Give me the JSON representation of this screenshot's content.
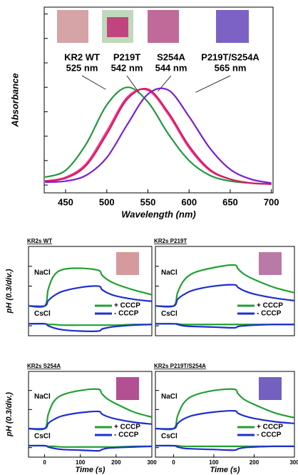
{
  "chart_data": [
    {
      "type": "spectrum",
      "xlabel": "Wavelength (nm)",
      "ylabel": "Absorbance",
      "x": [
        425,
        450,
        475,
        500,
        525,
        550,
        575,
        600,
        625,
        650,
        675,
        700
      ],
      "xlim": [
        424,
        702
      ],
      "xticks": [
        450,
        500,
        550,
        600,
        650,
        700
      ],
      "ylim": [
        -0.08,
        1.82
      ],
      "yticks": [
        0,
        0.25,
        0.5,
        0.75,
        1,
        1.25,
        1.5,
        1.75
      ],
      "series": [
        {
          "name": "KR2 WT",
          "peak_label": "525 nm",
          "color": "#1f9a3c",
          "values": [
            0.08,
            0.15,
            0.42,
            0.82,
            1.0,
            0.85,
            0.52,
            0.25,
            0.1,
            0.04,
            0.02,
            0.01
          ]
        },
        {
          "name": "P219T",
          "peak_label": "542 nm",
          "color": "#ee3a8c",
          "values": [
            0.04,
            0.08,
            0.22,
            0.55,
            0.9,
            0.97,
            0.72,
            0.38,
            0.15,
            0.06,
            0.02,
            0.01
          ]
        },
        {
          "name": "S254A",
          "peak_label": "544 nm",
          "color": "#d81b60",
          "values": [
            0.04,
            0.07,
            0.2,
            0.52,
            0.88,
            0.98,
            0.74,
            0.4,
            0.16,
            0.06,
            0.02,
            0.01
          ]
        },
        {
          "name": "P219T/S254A",
          "peak_label": "565 nm",
          "color": "#7a1fd2",
          "values": [
            0.03,
            0.04,
            0.1,
            0.28,
            0.62,
            0.93,
            0.97,
            0.7,
            0.38,
            0.16,
            0.06,
            0.02
          ]
        }
      ]
    },
    {
      "type": "ph",
      "title": "KR2s WT",
      "ylabel": "pH (0.3/div.)",
      "x": [
        -45,
        0,
        10,
        25,
        50,
        100,
        150,
        160,
        175,
        200,
        250,
        300
      ],
      "xlim": [
        -45,
        300
      ],
      "ylim": [
        -0.45,
        0.9
      ],
      "yticks": [
        -0.3,
        0,
        0.3,
        0.6
      ],
      "groups": [
        {
          "label": "NaCl",
          "series": [
            {
              "name": "+ CCCP",
              "color": "#22a033",
              "values": [
                0,
                0,
                0.25,
                0.45,
                0.55,
                0.57,
                0.54,
                0.47,
                0.4,
                0.33,
                0.24,
                0.17
              ]
            },
            {
              "name": "- CCCP",
              "color": "#1e2fd0",
              "values": [
                0,
                0,
                0.08,
                0.15,
                0.22,
                0.28,
                0.3,
                0.25,
                0.2,
                0.15,
                0.1,
                0.07
              ]
            }
          ]
        },
        {
          "label": "CsCl",
          "series": [
            {
              "color": "#22a033",
              "values": [
                -0.27,
                -0.27,
                -0.28,
                -0.28,
                -0.29,
                -0.29,
                -0.29,
                -0.29,
                -0.29,
                -0.29,
                -0.28,
                -0.28
              ]
            },
            {
              "color": "#1e2fd0",
              "values": [
                -0.27,
                -0.27,
                -0.3,
                -0.33,
                -0.36,
                -0.38,
                -0.38,
                -0.35,
                -0.33,
                -0.31,
                -0.29,
                -0.28
              ]
            }
          ]
        }
      ]
    },
    {
      "type": "ph",
      "title": "KR2s P219T",
      "x": [
        -45,
        0,
        10,
        25,
        50,
        100,
        150,
        160,
        175,
        200,
        250,
        300
      ],
      "xlim": [
        -45,
        300
      ],
      "ylim": [
        -0.45,
        0.9
      ],
      "yticks": [
        -0.3,
        0,
        0.3,
        0.6
      ],
      "groups": [
        {
          "label": "NaCl",
          "series": [
            {
              "name": "+ CCCP",
              "color": "#22a033",
              "values": [
                0,
                0,
                0.2,
                0.38,
                0.5,
                0.58,
                0.62,
                0.56,
                0.48,
                0.4,
                0.28,
                0.2
              ]
            },
            {
              "name": "- CCCP",
              "color": "#1e2fd0",
              "values": [
                0,
                0,
                0.1,
                0.17,
                0.24,
                0.3,
                0.32,
                0.28,
                0.23,
                0.18,
                0.12,
                0.08
              ]
            }
          ]
        },
        {
          "label": "CsCl",
          "series": [
            {
              "color": "#22a033",
              "values": [
                -0.27,
                -0.27,
                -0.27,
                -0.28,
                -0.28,
                -0.28,
                -0.28,
                -0.28,
                -0.28,
                -0.28,
                -0.28,
                -0.28
              ]
            },
            {
              "color": "#1e2fd0",
              "values": [
                -0.27,
                -0.27,
                -0.28,
                -0.3,
                -0.31,
                -0.32,
                -0.33,
                -0.31,
                -0.3,
                -0.29,
                -0.28,
                -0.28
              ]
            }
          ]
        }
      ]
    },
    {
      "type": "ph",
      "title": "KR2s S254A",
      "ylabel": "pH (0.3/div.)",
      "xlabel": "Time (s)",
      "x": [
        -45,
        0,
        10,
        25,
        50,
        100,
        150,
        160,
        175,
        200,
        250,
        300
      ],
      "xlim": [
        -45,
        300
      ],
      "xticks": [
        0,
        100,
        200,
        300
      ],
      "ylim": [
        -0.45,
        0.9
      ],
      "yticks": [
        -0.3,
        0,
        0.3,
        0.6
      ],
      "groups": [
        {
          "label": "NaCl",
          "series": [
            {
              "name": "+ CCCP",
              "color": "#22a033",
              "values": [
                0,
                0,
                0.22,
                0.42,
                0.53,
                0.6,
                0.62,
                0.55,
                0.47,
                0.39,
                0.26,
                0.18
              ]
            },
            {
              "name": "- CCCP",
              "color": "#1e2fd0",
              "values": [
                0,
                0,
                0.08,
                0.14,
                0.2,
                0.25,
                0.27,
                0.23,
                0.19,
                0.15,
                0.1,
                0.07
              ]
            }
          ]
        },
        {
          "label": "CsCl",
          "series": [
            {
              "color": "#22a033",
              "values": [
                -0.27,
                -0.27,
                -0.28,
                -0.28,
                -0.29,
                -0.29,
                -0.29,
                -0.29,
                -0.29,
                -0.29,
                -0.28,
                -0.28
              ]
            },
            {
              "color": "#1e2fd0",
              "values": [
                -0.27,
                -0.27,
                -0.29,
                -0.31,
                -0.33,
                -0.34,
                -0.35,
                -0.33,
                -0.31,
                -0.3,
                -0.29,
                -0.28
              ]
            }
          ]
        }
      ]
    },
    {
      "type": "ph",
      "title": "KR2s P219T/S254A",
      "xlabel": "Time (s)",
      "x": [
        -45,
        0,
        10,
        25,
        50,
        100,
        150,
        160,
        175,
        200,
        250,
        300
      ],
      "xlim": [
        -45,
        300
      ],
      "xticks": [
        0,
        100,
        200,
        300
      ],
      "ylim": [
        -0.45,
        0.9
      ],
      "yticks": [
        -0.3,
        0,
        0.3,
        0.6
      ],
      "groups": [
        {
          "label": "NaCl",
          "series": [
            {
              "name": "+ CCCP",
              "color": "#22a033",
              "values": [
                0,
                0,
                0.2,
                0.4,
                0.52,
                0.6,
                0.62,
                0.55,
                0.46,
                0.38,
                0.25,
                0.17
              ]
            },
            {
              "name": "- CCCP",
              "color": "#1e2fd0",
              "values": [
                0,
                0,
                0.08,
                0.15,
                0.21,
                0.26,
                0.28,
                0.24,
                0.2,
                0.16,
                0.11,
                0.08
              ]
            }
          ]
        },
        {
          "label": "CsCl",
          "series": [
            {
              "color": "#22a033",
              "values": [
                -0.27,
                -0.27,
                -0.27,
                -0.28,
                -0.28,
                -0.28,
                -0.28,
                -0.28,
                -0.28,
                -0.28,
                -0.28,
                -0.28
              ]
            },
            {
              "color": "#1e2fd0",
              "values": [
                -0.27,
                -0.27,
                -0.29,
                -0.31,
                -0.32,
                -0.33,
                -0.34,
                -0.32,
                -0.3,
                -0.29,
                -0.28,
                -0.28
              ]
            }
          ]
        }
      ]
    }
  ]
}
